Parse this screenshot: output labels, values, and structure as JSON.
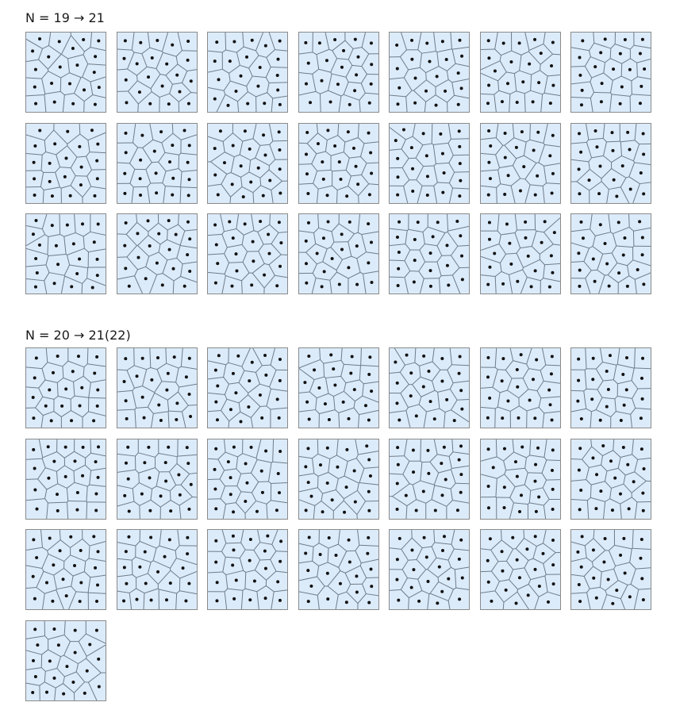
{
  "sections": [
    {
      "id": "s1",
      "title": "N = 19 → 21",
      "panel_count": 21,
      "points_per_panel": 21
    },
    {
      "id": "s2",
      "title": "N = 20 → 21(22)",
      "panel_count": 22,
      "points_per_panel": 21
    }
  ],
  "colors": {
    "cell_fill": "#dcebfa",
    "edge": "#6e7c8a",
    "border": "#8a8a8a",
    "point": "#111111"
  }
}
